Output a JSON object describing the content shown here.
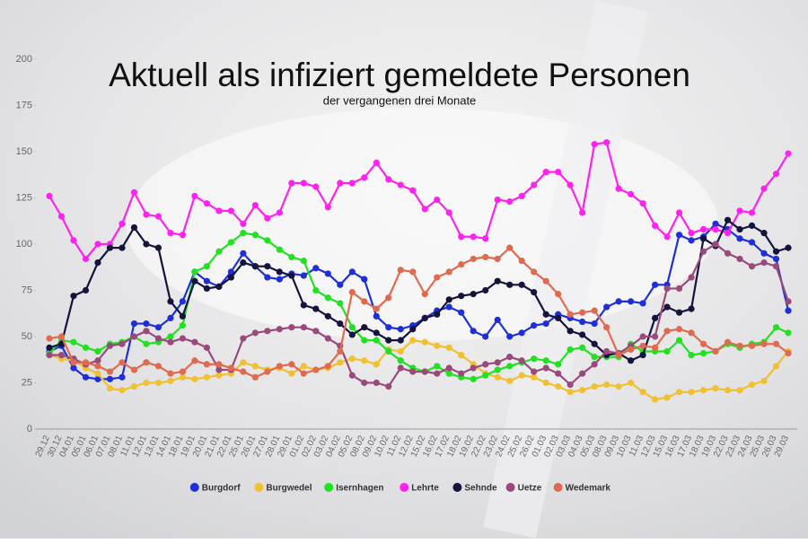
{
  "chart_data": {
    "type": "line",
    "title": "Aktuell als infiziert gemeldete Personen",
    "subtitle": "der vergangenen drei Monate",
    "categories": [
      "29.12",
      "30.12",
      "04.01",
      "05.01",
      "06.01",
      "07.01",
      "08.01",
      "11.01",
      "12.01",
      "13.01",
      "14.01",
      "18.01",
      "19.01",
      "20.01",
      "21.01",
      "22.01",
      "25.01",
      "26.01",
      "27.01",
      "28.01",
      "29.01",
      "01.02",
      "02.02",
      "03.02",
      "04.02",
      "05.02",
      "08.02",
      "09.02",
      "10.02",
      "11.02",
      "12.02",
      "15.02",
      "16.02",
      "17.02",
      "18.02",
      "19.02",
      "22.02",
      "23.02",
      "24.02",
      "25.02",
      "26.02",
      "01.03",
      "02.03",
      "03.03",
      "04.03",
      "05.03",
      "08.03",
      "09.03",
      "10.03",
      "11.03",
      "12.03",
      "15.03",
      "16.03",
      "17.03",
      "18.03",
      "19.03",
      "22.03",
      "23.03",
      "24.03",
      "25.03",
      "26.03",
      "29.03"
    ],
    "series": [
      {
        "name": "Burgdorf",
        "color": "#1f2fd8",
        "values": [
          42,
          45,
          33,
          28,
          27,
          27,
          28,
          57,
          57,
          55,
          60,
          69,
          85,
          80,
          77,
          85,
          95,
          88,
          82,
          81,
          84,
          83,
          87,
          84,
          78,
          85,
          81,
          61,
          55,
          54,
          56,
          60,
          64,
          66,
          63,
          53,
          50,
          59,
          50,
          52,
          56,
          57,
          62,
          60,
          58,
          57,
          66,
          69,
          69,
          68,
          78,
          78,
          105,
          102,
          104,
          111,
          108,
          103,
          101,
          95,
          92,
          64
        ]
      },
      {
        "name": "Burgwedel",
        "color": "#f0c030",
        "values": [
          40,
          38,
          37,
          33,
          30,
          22,
          21,
          23,
          25,
          25,
          26,
          28,
          27,
          28,
          29,
          30,
          36,
          34,
          32,
          33,
          30,
          34,
          32,
          33,
          36,
          38,
          37,
          35,
          43,
          42,
          48,
          47,
          45,
          44,
          40,
          35,
          30,
          28,
          26,
          29,
          28,
          25,
          23,
          20,
          21,
          23,
          24,
          23,
          25,
          20,
          16,
          17,
          20,
          20,
          21,
          22,
          21,
          21,
          24,
          26,
          34,
          42
        ]
      },
      {
        "name": "Isernhagen",
        "color": "#22e022",
        "values": [
          41,
          48,
          47,
          44,
          42,
          46,
          47,
          50,
          46,
          47,
          50,
          56,
          85,
          88,
          96,
          101,
          106,
          105,
          102,
          97,
          93,
          91,
          75,
          71,
          68,
          55,
          48,
          48,
          42,
          37,
          33,
          31,
          34,
          30,
          28,
          27,
          29,
          32,
          34,
          36,
          38,
          37,
          35,
          43,
          44,
          39,
          39,
          39,
          46,
          42,
          42,
          42,
          48,
          40,
          41,
          42,
          46,
          44,
          46,
          47,
          55,
          52
        ]
      },
      {
        "name": "Lehrte",
        "color": "#ff22ee",
        "values": [
          126,
          115,
          102,
          92,
          100,
          100,
          111,
          128,
          116,
          115,
          106,
          105,
          126,
          122,
          118,
          118,
          111,
          121,
          114,
          117,
          133,
          133,
          131,
          120,
          133,
          133,
          136,
          144,
          135,
          132,
          129,
          119,
          124,
          117,
          104,
          104,
          103,
          124,
          123,
          126,
          132,
          139,
          139,
          132,
          117,
          154,
          155,
          130,
          127,
          122,
          110,
          104,
          117,
          106,
          108,
          108,
          106,
          118,
          117,
          130,
          138,
          149
        ]
      },
      {
        "name": "Sehnde",
        "color": "#14143c",
        "values": [
          44,
          46,
          72,
          75,
          90,
          98,
          98,
          109,
          100,
          98,
          69,
          61,
          80,
          76,
          77,
          82,
          90,
          88,
          88,
          85,
          83,
          67,
          65,
          61,
          57,
          51,
          55,
          52,
          48,
          48,
          54,
          60,
          62,
          70,
          72,
          73,
          75,
          80,
          78,
          78,
          74,
          62,
          60,
          53,
          51,
          46,
          40,
          41,
          37,
          40,
          60,
          66,
          63,
          65,
          103,
          99,
          113,
          108,
          110,
          106,
          96,
          98
        ]
      },
      {
        "name": "Uetze",
        "color": "#9a4a7a",
        "values": [
          40,
          40,
          38,
          35,
          37,
          45,
          46,
          50,
          53,
          49,
          47,
          49,
          47,
          44,
          32,
          32,
          49,
          52,
          53,
          54,
          55,
          55,
          53,
          49,
          45,
          29,
          25,
          25,
          23,
          33,
          31,
          31,
          30,
          33,
          30,
          33,
          35,
          36,
          39,
          37,
          31,
          33,
          30,
          24,
          30,
          35,
          42,
          41,
          45,
          50,
          50,
          76,
          76,
          82,
          96,
          100,
          95,
          92,
          88,
          90,
          88,
          69
        ]
      },
      {
        "name": "Wedemark",
        "color": "#e06a50",
        "values": [
          49,
          50,
          36,
          36,
          34,
          31,
          36,
          32,
          36,
          34,
          30,
          31,
          37,
          35,
          35,
          33,
          31,
          28,
          31,
          34,
          35,
          30,
          32,
          34,
          42,
          74,
          69,
          65,
          71,
          86,
          85,
          73,
          82,
          85,
          89,
          92,
          93,
          92,
          98,
          91,
          85,
          80,
          73,
          62,
          63,
          64,
          55,
          40,
          43,
          45,
          44,
          53,
          54,
          52,
          46,
          42,
          47,
          45,
          45,
          46,
          46,
          41
        ]
      }
    ],
    "ylim": [
      0,
      200
    ],
    "yticks": [
      0,
      25,
      50,
      75,
      100,
      125,
      150,
      175,
      200
    ]
  }
}
